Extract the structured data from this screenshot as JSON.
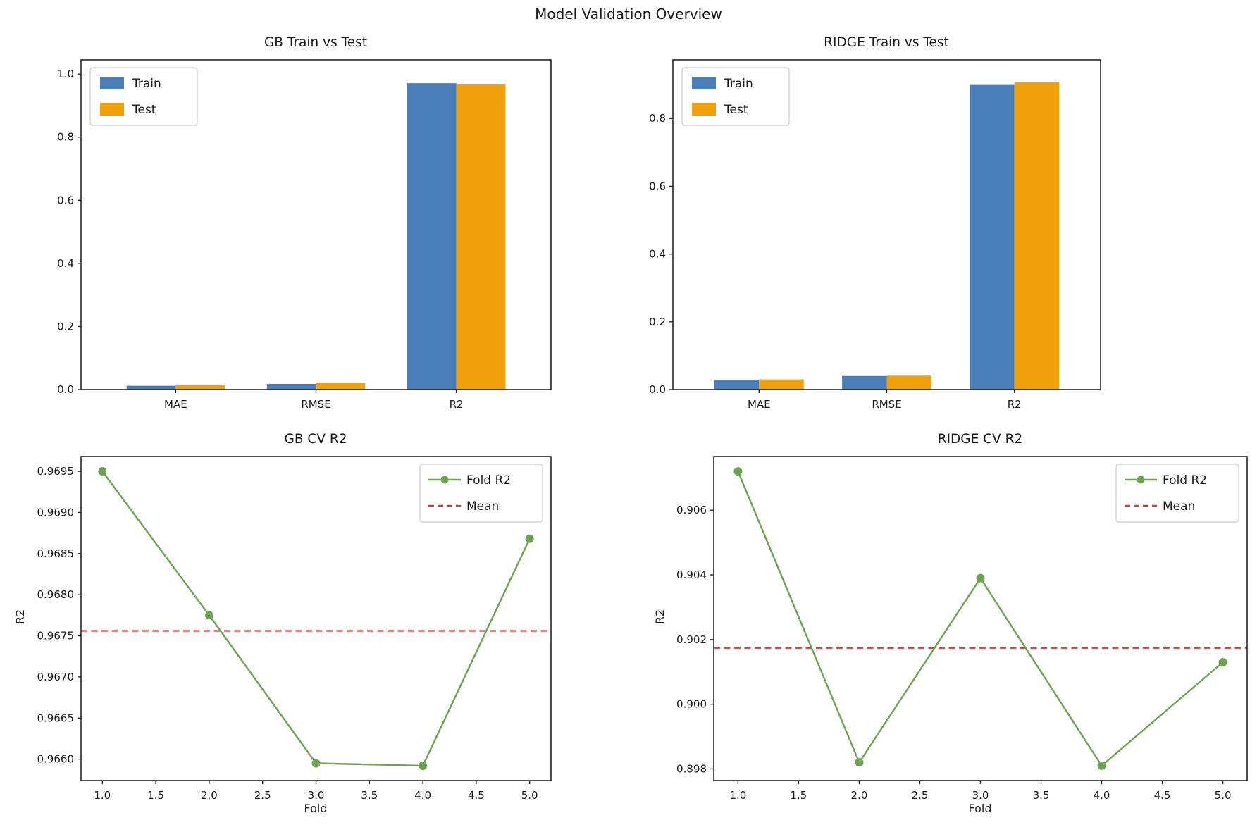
{
  "figure": {
    "title": "Model Validation Overview",
    "background": "#ffffff",
    "colors": {
      "train": "#4a7ebb",
      "test": "#efa00b",
      "fold_line": "#6ba353",
      "mean_line": "#bf4242",
      "axis": "#262626",
      "legend_border": "#cccccc"
    }
  },
  "chart_data": [
    {
      "id": "gb_bar",
      "type": "bar",
      "title": "GB Train vs Test",
      "categories": [
        "MAE",
        "RMSE",
        "R2"
      ],
      "series": [
        {
          "name": "Train",
          "values": [
            0.012,
            0.018,
            0.971
          ]
        },
        {
          "name": "Test",
          "values": [
            0.014,
            0.021,
            0.969
          ]
        }
      ],
      "ylim": [
        0,
        1.045
      ],
      "yticks": [
        0,
        0.2,
        0.4,
        0.6,
        0.8,
        1.0
      ],
      "ytick_labels": [
        "0.0",
        "0.2",
        "0.4",
        "0.6",
        "0.8",
        "1.0"
      ],
      "legend": [
        "Train",
        "Test"
      ],
      "legend_position": "upper left",
      "xlabel": "",
      "ylabel": ""
    },
    {
      "id": "ridge_bar",
      "type": "bar",
      "title": "RIDGE Train vs Test",
      "categories": [
        "MAE",
        "RMSE",
        "R2"
      ],
      "series": [
        {
          "name": "Train",
          "values": [
            0.029,
            0.04,
            0.901
          ]
        },
        {
          "name": "Test",
          "values": [
            0.03,
            0.041,
            0.907
          ]
        }
      ],
      "ylim": [
        0,
        0.973
      ],
      "yticks": [
        0,
        0.2,
        0.4,
        0.6,
        0.8
      ],
      "ytick_labels": [
        "0.0",
        "0.2",
        "0.4",
        "0.6",
        "0.8"
      ],
      "legend": [
        "Train",
        "Test"
      ],
      "legend_position": "upper left",
      "xlabel": "",
      "ylabel": ""
    },
    {
      "id": "gb_cv",
      "type": "line",
      "title": "GB CV R2",
      "xlabel": "Fold",
      "ylabel": "R2",
      "x": [
        1,
        2,
        3,
        4,
        5
      ],
      "series": [
        {
          "name": "Fold R2",
          "values": [
            0.9695,
            0.96775,
            0.96595,
            0.96592,
            0.96868
          ]
        }
      ],
      "mean": 0.96756,
      "legend": [
        "Fold R2",
        "Mean"
      ],
      "legend_position": "upper right",
      "xlim": [
        0.8,
        5.2
      ],
      "ylim": [
        0.96574,
        0.96968
      ],
      "xticks": [
        1,
        1.5,
        2,
        2.5,
        3,
        3.5,
        4,
        4.5,
        5
      ],
      "xtick_labels": [
        "1.0",
        "1.5",
        "2.0",
        "2.5",
        "3.0",
        "3.5",
        "4.0",
        "4.5",
        "5.0"
      ],
      "yticks": [
        0.966,
        0.9665,
        0.967,
        0.9675,
        0.968,
        0.9685,
        0.969,
        0.9695
      ],
      "ytick_labels": [
        "0.9660",
        "0.9665",
        "0.9670",
        "0.9675",
        "0.9680",
        "0.9685",
        "0.9690",
        "0.9695"
      ]
    },
    {
      "id": "ridge_cv",
      "type": "line",
      "title": "RIDGE CV R2",
      "xlabel": "Fold",
      "ylabel": "R2",
      "x": [
        1,
        2,
        3,
        4,
        5
      ],
      "series": [
        {
          "name": "Fold R2",
          "values": [
            0.9072,
            0.8982,
            0.9039,
            0.8981,
            0.9013
          ]
        }
      ],
      "mean": 0.90174,
      "legend": [
        "Fold R2",
        "Mean"
      ],
      "legend_position": "upper right",
      "xlim": [
        0.8,
        5.2
      ],
      "ylim": [
        0.89764,
        0.90766
      ],
      "xticks": [
        1,
        1.5,
        2,
        2.5,
        3,
        3.5,
        4,
        4.5,
        5
      ],
      "xtick_labels": [
        "1.0",
        "1.5",
        "2.0",
        "2.5",
        "3.0",
        "3.5",
        "4.0",
        "4.5",
        "5.0"
      ],
      "yticks": [
        0.898,
        0.9,
        0.902,
        0.904,
        0.906
      ],
      "ytick_labels": [
        "0.898",
        "0.900",
        "0.902",
        "0.904",
        "0.906"
      ]
    }
  ]
}
